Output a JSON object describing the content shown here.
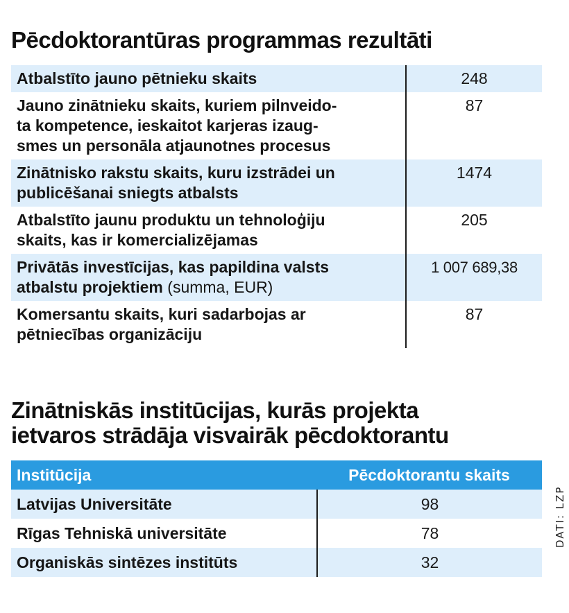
{
  "section1": {
    "title": "Pēcdoktorantūras programmas rezultāti",
    "rows": [
      {
        "label": "Atbalstīto jauno pētnieku skaits",
        "note": "",
        "value": "248"
      },
      {
        "label": "Jauno zinātnieku skaits, kuriem pilnveido-\nta kompetence, ieskaitot karjeras izaug-\nsmes un personāla atjaunotnes procesus",
        "note": "",
        "value": "87"
      },
      {
        "label": "Zinātnisko rakstu skaits, kuru izstrādei un\npublicēšanai sniegts atbalsts",
        "note": "",
        "value": "1474"
      },
      {
        "label": "Atbalstīto jaunu produktu un tehnoloģiju\nskaits, kas ir komercializējamas",
        "note": "",
        "value": "205"
      },
      {
        "label": "Privātās investīcijas, kas papildina valsts\natbalstu projektiem",
        "note": "(summa, EUR)",
        "value": "1 007 689,38"
      },
      {
        "label": "Komersantu skaits, kuri sadarbojas ar\npētniecības organizāciju",
        "note": "",
        "value": "87"
      }
    ]
  },
  "section2": {
    "title": "Zinātniskās institūcijas, kurās projekta\nietvaros strādāja visvairāk pēcdoktorantu",
    "header": {
      "institution": "Institūcija",
      "count": "Pēcdoktorantu skaits"
    },
    "rows": [
      {
        "institution": "Latvijas Universitāte",
        "count": "98"
      },
      {
        "institution": "Rīgas Tehniskā universitāte",
        "count": "78"
      },
      {
        "institution": "Organiskās sintēzes institūts",
        "count": "32"
      }
    ]
  },
  "source": "DATI: LZP",
  "colors": {
    "header_blue": "#2a9be0",
    "row_shade": "#deeefb"
  }
}
